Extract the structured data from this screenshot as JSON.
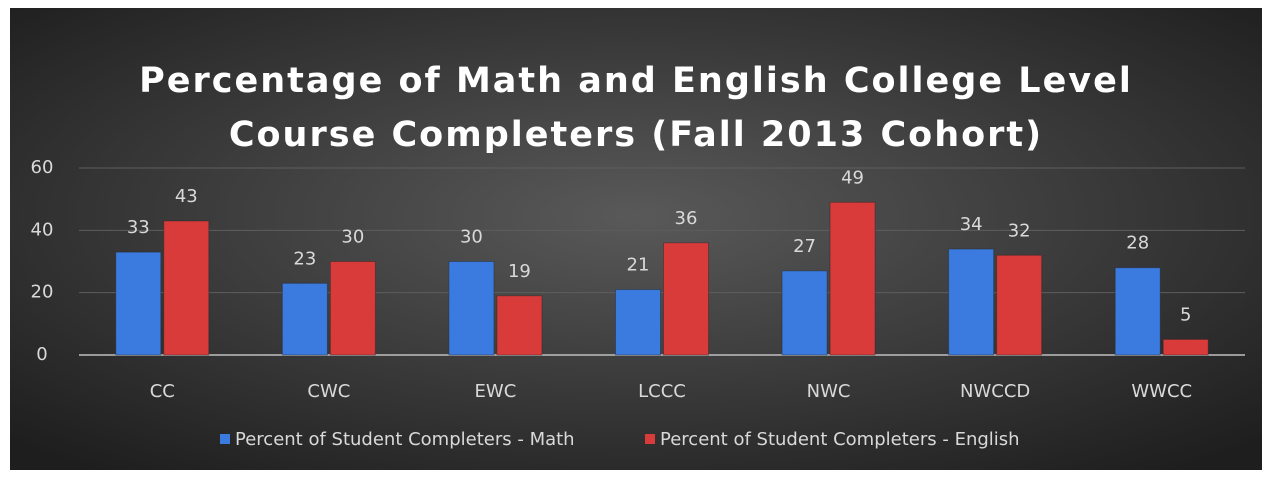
{
  "chart_data": {
    "type": "bar",
    "title": [
      "Percentage of Math and English College Level",
      "Course Completers (Fall 2013 Cohort)"
    ],
    "categories": [
      "CC",
      "CWC",
      "EWC",
      "LCCC",
      "NWC",
      "NWCCD",
      "WWCC"
    ],
    "series": [
      {
        "name": "Percent of Student Completers - Math",
        "color": "#3b7be0",
        "values": [
          33,
          23,
          30,
          21,
          27,
          34,
          28
        ]
      },
      {
        "name": "Percent of Student Completers - English",
        "color": "#d93b3b",
        "values": [
          43,
          30,
          19,
          36,
          49,
          32,
          5
        ]
      }
    ],
    "ylim": [
      0,
      60
    ],
    "yticks": [
      0,
      20,
      40,
      60
    ],
    "grid": true,
    "legend": "bottom"
  }
}
